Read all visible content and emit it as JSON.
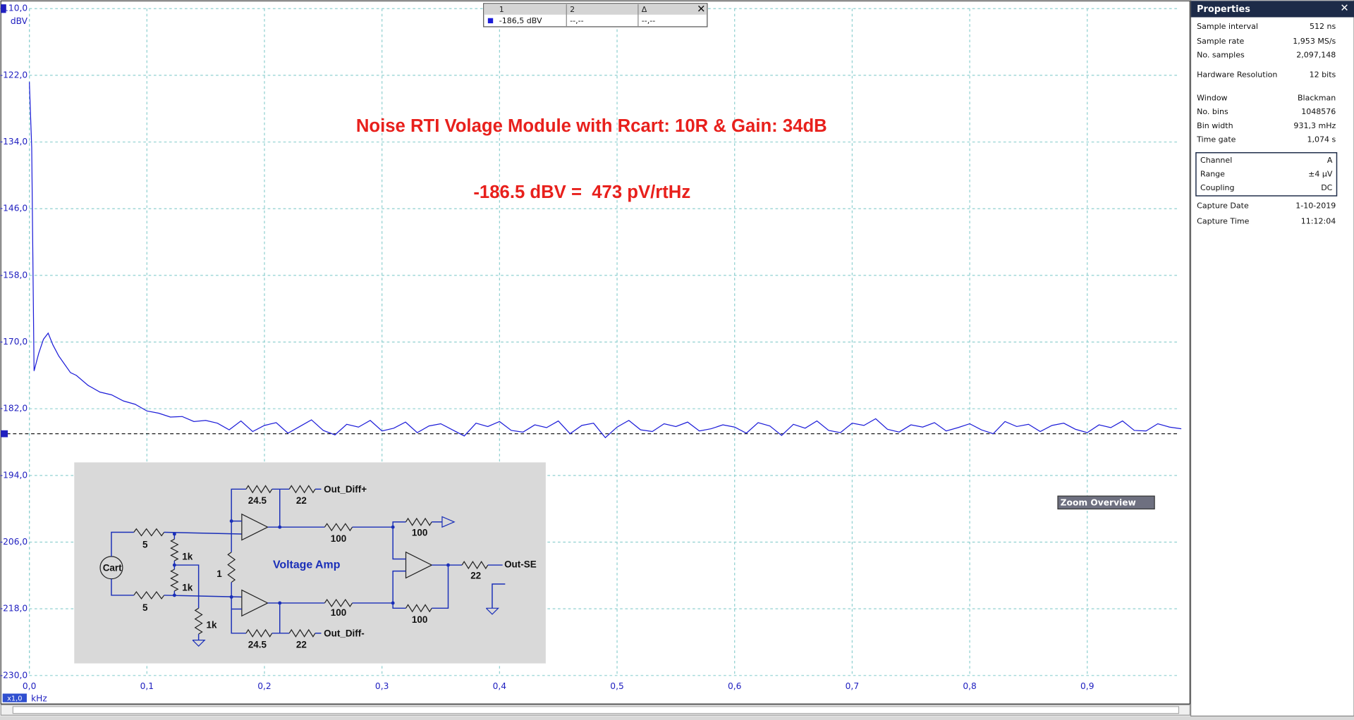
{
  "chart_data": {
    "type": "line",
    "title": "Noise RTI Volage Module with Rcart: 10R & Gain: 34dB",
    "annotation": "-186.5 dBV =  473 pV/rtHz",
    "y_unit": "dBV",
    "x_unit": "kHz",
    "xlim": [
      0,
      0.98
    ],
    "ylim": [
      -230,
      -110
    ],
    "yticks": [
      {
        "value": -110,
        "label": "-110,0"
      },
      {
        "value": -122,
        "label": "-122,0"
      },
      {
        "value": -134,
        "label": "-134,0"
      },
      {
        "value": -146,
        "label": "-146,0"
      },
      {
        "value": -158,
        "label": "-158,0"
      },
      {
        "value": -170,
        "label": "-170,0"
      },
      {
        "value": -182,
        "label": "-182,0"
      },
      {
        "value": -194,
        "label": "-194,0"
      },
      {
        "value": -206,
        "label": "-206,0"
      },
      {
        "value": -218,
        "label": "-218,0"
      },
      {
        "value": -230,
        "label": "-230,0"
      }
    ],
    "xticks": [
      {
        "value": 0,
        "label": "0,0"
      },
      {
        "value": 0.1,
        "label": "0,1"
      },
      {
        "value": 0.2,
        "label": "0,2"
      },
      {
        "value": 0.3,
        "label": "0,3"
      },
      {
        "value": 0.4,
        "label": "0,4"
      },
      {
        "value": 0.5,
        "label": "0,5"
      },
      {
        "value": 0.6,
        "label": "0,6"
      },
      {
        "value": 0.7,
        "label": "0,7"
      },
      {
        "value": 0.8,
        "label": "0,8"
      },
      {
        "value": 0.9,
        "label": "0,9"
      }
    ],
    "grid": true,
    "ruler": {
      "value": -186.5,
      "label": "-186,5 dBV"
    },
    "series": [
      {
        "color": "#1c1cd8",
        "x": [
          0,
          0.002,
          0.004,
          0.008,
          0.012,
          0.016,
          0.02,
          0.025,
          0.03,
          0.035,
          0.04,
          0.05,
          0.06,
          0.07,
          0.08,
          0.09,
          0.1,
          0.11,
          0.12,
          0.13,
          0.14,
          0.15,
          0.16,
          0.17,
          0.18,
          0.19,
          0.2,
          0.21,
          0.22,
          0.23,
          0.24,
          0.25,
          0.26,
          0.27,
          0.28,
          0.29,
          0.3,
          0.31,
          0.32,
          0.33,
          0.34,
          0.35,
          0.36,
          0.37,
          0.38,
          0.39,
          0.4,
          0.41,
          0.42,
          0.43,
          0.44,
          0.45,
          0.46,
          0.47,
          0.48,
          0.49,
          0.5,
          0.51,
          0.52,
          0.53,
          0.54,
          0.55,
          0.56,
          0.57,
          0.58,
          0.59,
          0.6,
          0.61,
          0.62,
          0.63,
          0.64,
          0.65,
          0.66,
          0.67,
          0.68,
          0.69,
          0.7,
          0.71,
          0.72,
          0.73,
          0.74,
          0.75,
          0.76,
          0.77,
          0.78,
          0.79,
          0.8,
          0.81,
          0.82,
          0.83,
          0.84,
          0.85,
          0.86,
          0.87,
          0.88,
          0.89,
          0.9,
          0.91,
          0.92,
          0.93,
          0.94,
          0.95,
          0.96,
          0.97,
          0.98
        ],
        "values": [
          -123.2,
          -135,
          -175.2,
          -172,
          -169.5,
          -168.4,
          -170.5,
          -172.5,
          -174,
          -175.5,
          -176,
          -177.8,
          -179,
          -179.5,
          -180.6,
          -181.2,
          -182.4,
          -182.8,
          -183.5,
          -183.4,
          -184.3,
          -184.1,
          -184.6,
          -185.8,
          -184.2,
          -186.1,
          -185.0,
          -184.5,
          -186.4,
          -185.2,
          -184.0,
          -185.9,
          -186.7,
          -184.8,
          -185.3,
          -184.1,
          -186.0,
          -185.5,
          -184.4,
          -186.3,
          -185.1,
          -184.7,
          -185.8,
          -186.9,
          -184.6,
          -185.2,
          -184.3,
          -185.9,
          -186.2,
          -184.9,
          -185.4,
          -184.2,
          -186.5,
          -185.0,
          -184.6,
          -187.2,
          -185.3,
          -184.1,
          -185.8,
          -186.1,
          -184.7,
          -185.2,
          -184.4,
          -186.0,
          -185.6,
          -184.9,
          -185.3,
          -186.4,
          -184.5,
          -185.1,
          -186.8,
          -184.8,
          -185.5,
          -184.2,
          -185.9,
          -186.3,
          -184.6,
          -185.0,
          -183.8,
          -185.7,
          -186.2,
          -184.9,
          -185.3,
          -184.5,
          -186.0,
          -185.4,
          -184.7,
          -185.8,
          -186.5,
          -184.3,
          -185.2,
          -184.8,
          -186.1,
          -185.0,
          -184.6,
          -185.7,
          -186.3,
          -184.9,
          -185.4,
          -184.2,
          -185.9,
          -186.0,
          -184.7,
          -185.3,
          -185.6
        ]
      }
    ]
  },
  "ruler_table": {
    "headers": [
      "1",
      "2",
      "Δ"
    ],
    "cells": [
      "--,--",
      "--,--"
    ]
  },
  "ui": {
    "zoom": "x1,0",
    "zoom_overview": "Zoom Overview"
  },
  "properties": {
    "title": "Properties",
    "rows": [
      [
        "Sample interval",
        "512 ns"
      ],
      [
        "Sample rate",
        "1,953 MS/s"
      ],
      [
        "No. samples",
        "2,097,148"
      ],
      [
        "Hardware Resolution",
        "12 bits"
      ],
      [
        "Window",
        "Blackman"
      ],
      [
        "No. bins",
        "1048576"
      ],
      [
        "Bin width",
        "931,3 mHz"
      ],
      [
        "Time gate",
        "1,074 s"
      ],
      [
        "Channel",
        "A"
      ],
      [
        "Range",
        "±4 µV"
      ],
      [
        "Coupling",
        "DC"
      ],
      [
        "Capture Date",
        "1-10-2019"
      ],
      [
        "Capture Time",
        "11:12:04"
      ]
    ]
  },
  "schematic": {
    "labels": [
      "24.5",
      "22",
      "Out_Diff+",
      "5",
      "1k",
      "100",
      "100",
      "Cart",
      "Voltage Amp",
      "1",
      "1k",
      "22",
      "Out-SE",
      "5",
      "1k",
      "100",
      "100",
      "24.5",
      "22",
      "Out_Diff-"
    ]
  }
}
